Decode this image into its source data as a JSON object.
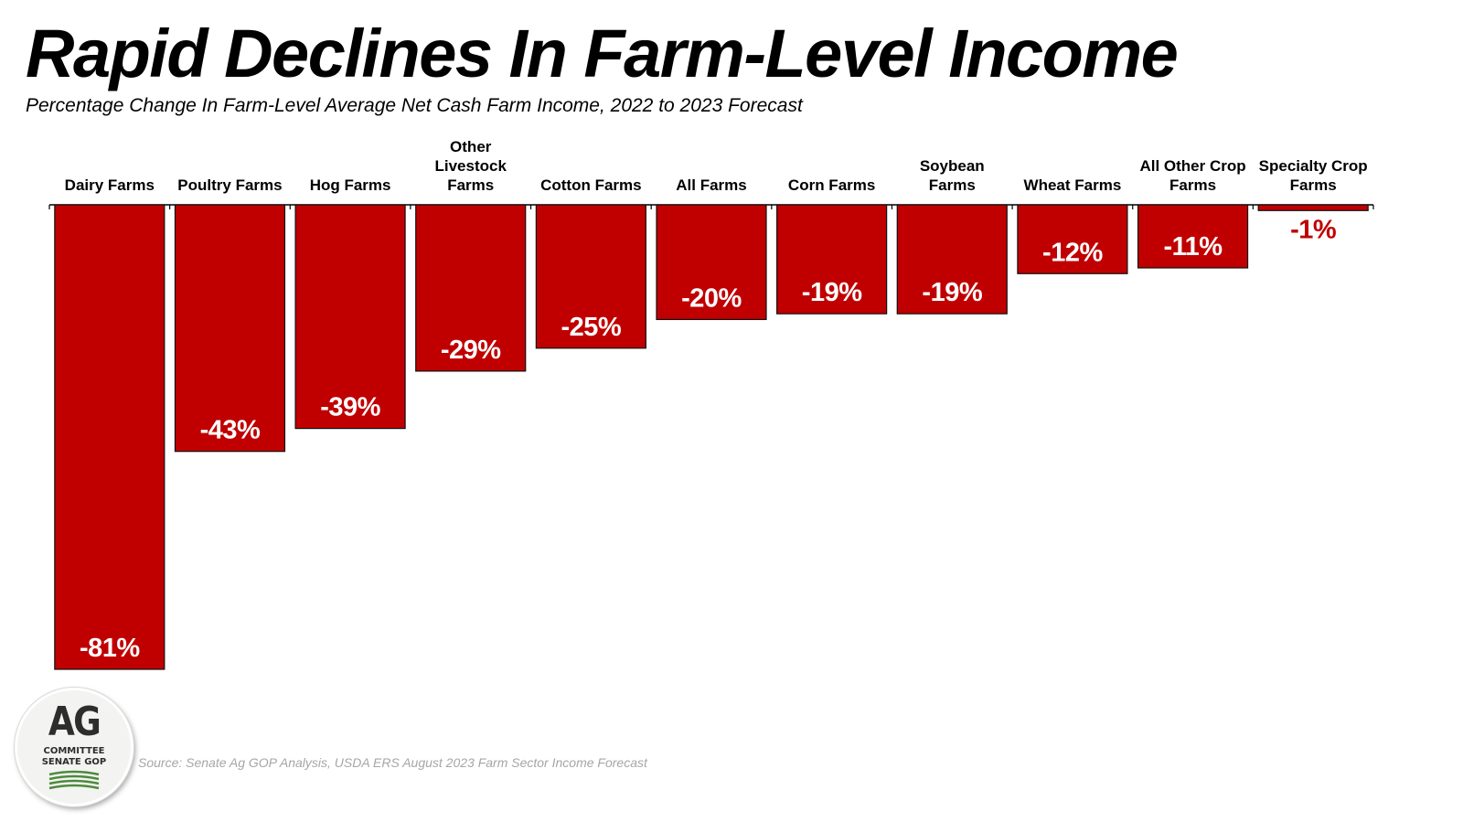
{
  "title": "Rapid Declines In Farm-Level Income",
  "subtitle": "Percentage Change In Farm-Level Average Net Cash Farm Income, 2022 to 2023 Forecast",
  "source": "Source: Senate Ag GOP Analysis, USDA ERS August 2023 Farm Sector Income Forecast",
  "logo": {
    "main": "AG",
    "line1": "COMMITTEE",
    "line2": "SENATE GOP"
  },
  "colors": {
    "bar": "#c00000",
    "bar_outline": "#111111",
    "label_inside": "#ffffff",
    "label_outside": "#c00000",
    "logo_green": "#4a8a3a"
  },
  "chart_data": {
    "type": "bar",
    "categories": [
      [
        "Dairy Farms"
      ],
      [
        "Poultry Farms"
      ],
      [
        "Hog Farms"
      ],
      [
        "Other",
        "Livestock",
        "Farms"
      ],
      [
        "Cotton Farms"
      ],
      [
        "All Farms"
      ],
      [
        "Corn Farms"
      ],
      [
        "Soybean",
        "Farms"
      ],
      [
        "Wheat Farms"
      ],
      [
        "All Other Crop",
        "Farms"
      ],
      [
        "Specialty Crop",
        "Farms"
      ]
    ],
    "values": [
      -81,
      -43,
      -39,
      -29,
      -25,
      -20,
      -19,
      -19,
      -12,
      -11,
      -1
    ],
    "value_labels": [
      "-81%",
      "-43%",
      "-39%",
      "-29%",
      "-25%",
      "-20%",
      "-19%",
      "-19%",
      "-12%",
      "-11%",
      "-1%"
    ],
    "unit": "%",
    "ylim": [
      -81,
      0
    ],
    "grid": false,
    "legend": "none"
  }
}
